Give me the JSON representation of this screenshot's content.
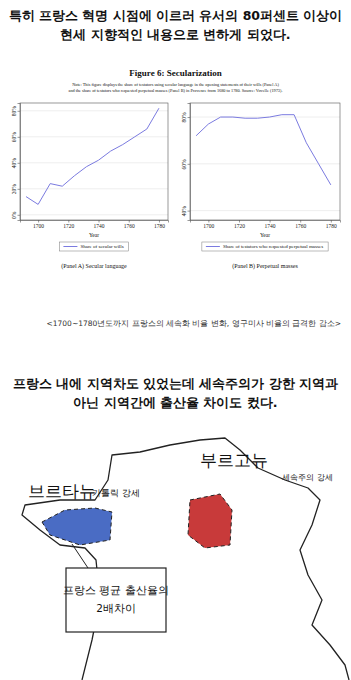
{
  "header": {
    "lines": [
      "특히 프랑스 혁명 시점에 이르러 유서의 80퍼센트 이상이",
      "현세 지향적인 내용으로 변하게 되었다."
    ]
  },
  "figure": {
    "title": "Figure 6: Secularization",
    "note": [
      "Note: This figure displays the share of testators using secular language in the opening statements of their wills (Panel A)",
      "and the share of testators who requested perpetual masses (Panel B) in Provence from 1680 to 1780. Source: Vovelle (1973)."
    ]
  },
  "chart_data": [
    {
      "type": "line",
      "title": "(Panel A) Secular language",
      "xlabel": "Year",
      "x": [
        1692,
        1700,
        1708,
        1716,
        1724,
        1732,
        1740,
        1748,
        1756,
        1764,
        1772,
        1780
      ],
      "series": [
        {
          "name": "Share of secular wills",
          "color": "#7b7be0",
          "values": [
            14,
            8,
            24,
            22,
            30,
            37,
            42,
            49,
            54,
            60,
            66,
            82
          ]
        }
      ],
      "xlim": [
        1688,
        1786
      ],
      "ylim": [
        -4,
        86
      ],
      "xticks": [
        1700,
        1720,
        1740,
        1760,
        1780
      ],
      "yticks": [
        {
          "value": 0,
          "label": "0%"
        },
        {
          "value": 20,
          "label": "20%"
        },
        {
          "value": 40,
          "label": "40%"
        },
        {
          "value": 60,
          "label": "60%"
        },
        {
          "value": 80,
          "label": "80%"
        }
      ],
      "grid": true,
      "legend": "bottom"
    },
    {
      "type": "line",
      "title": "(Panel B) Perpetual masses",
      "xlabel": "Year",
      "x": [
        1692,
        1700,
        1708,
        1716,
        1724,
        1732,
        1740,
        1748,
        1756,
        1764,
        1772,
        1780
      ],
      "series": [
        {
          "name": "Share of testators who requested perpetual masses",
          "color": "#7b7be0",
          "values": [
            72,
            77,
            80,
            80,
            79.5,
            79.5,
            80,
            81,
            81,
            69,
            60,
            51
          ]
        }
      ],
      "xlim": [
        1688,
        1786
      ],
      "ylim": [
        36,
        86
      ],
      "xticks": [
        1700,
        1720,
        1740,
        1760,
        1780
      ],
      "yticks": [
        {
          "value": 40,
          "label": "40%"
        },
        {
          "value": 60,
          "label": "60%"
        },
        {
          "value": 80,
          "label": "80%"
        }
      ],
      "grid": true,
      "legend": "bottom"
    }
  ],
  "caption": "<1700~1780년도까지 프랑스의 세속화 비율 변화, 영구미사 비율의 급격한 감소>",
  "section2": {
    "lines": [
      "프랑스 내에 지역차도 있었는데 세속주의가 강한 지역과",
      "아닌 지역간에 출산율 차이도 컸다."
    ]
  },
  "map": {
    "regions": [
      {
        "name": "브르타뉴",
        "note": "가톨릭 강세",
        "color": "#4a6cc4"
      },
      {
        "name": "부르고뉴",
        "note": "세속주의 강세",
        "color": "#c83a3a"
      }
    ],
    "box": [
      "프랑스 평균 출산율의",
      "2배차이"
    ]
  }
}
